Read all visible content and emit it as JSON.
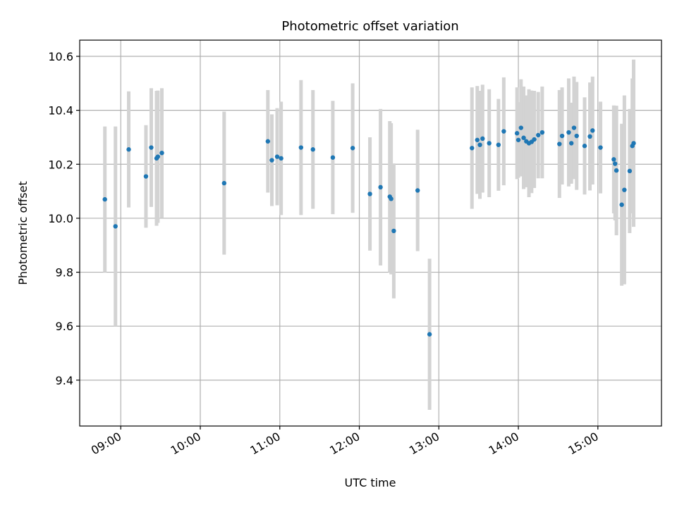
{
  "chart_data": {
    "type": "scatter",
    "title": "Photometric offset variation",
    "xlabel": "UTC time",
    "ylabel": "Photometric offset",
    "x_ticks": [
      "09:00",
      "10:00",
      "11:00",
      "12:00",
      "13:00",
      "14:00",
      "15:00"
    ],
    "y_ticks": [
      "9.4",
      "9.6",
      "9.8",
      "10.0",
      "10.2",
      "10.4",
      "10.6"
    ],
    "ylim": [
      9.23,
      10.66
    ],
    "xlim": [
      "08:29",
      "15:48"
    ],
    "grid": true,
    "colors": {
      "point": "#1f77b4",
      "errorbar": "#d3d3d3",
      "grid": "#b0b0b0"
    },
    "series": [
      {
        "x": [
          "08:48",
          "08:56",
          "09:06",
          "09:19",
          "09:23",
          "09:27",
          "09:28",
          "09:31",
          "10:18",
          "10:51",
          "10:54",
          "10:58",
          "11:01",
          "11:16",
          "11:25",
          "11:40",
          "11:55",
          "12:08",
          "12:16",
          "12:23",
          "12:24",
          "12:26",
          "12:44",
          "12:53",
          "13:25",
          "13:29",
          "13:31",
          "13:33",
          "13:38",
          "13:45",
          "13:49",
          "13:59",
          "14:00",
          "14:02",
          "14:04",
          "14:06",
          "14:08",
          "14:10",
          "14:12",
          "14:15",
          "14:18",
          "14:31",
          "14:33",
          "14:38",
          "14:40",
          "14:42",
          "14:44",
          "14:50",
          "14:54",
          "14:56",
          "15:02",
          "15:12",
          "15:13",
          "15:14",
          "15:18",
          "15:20",
          "15:24",
          "15:26",
          "15:27"
        ],
        "y": [
          10.07,
          9.97,
          10.255,
          10.155,
          10.262,
          10.222,
          10.228,
          10.242,
          10.13,
          10.285,
          10.215,
          10.228,
          10.222,
          10.262,
          10.255,
          10.225,
          10.26,
          10.09,
          10.115,
          10.08,
          10.072,
          9.953,
          10.103,
          9.57,
          10.26,
          10.29,
          10.272,
          10.295,
          10.278,
          10.272,
          10.322,
          10.315,
          10.29,
          10.335,
          10.298,
          10.285,
          10.278,
          10.283,
          10.292,
          10.308,
          10.318,
          10.275,
          10.305,
          10.318,
          10.278,
          10.335,
          10.305,
          10.268,
          10.303,
          10.325,
          10.262,
          10.218,
          10.202,
          10.177,
          10.05,
          10.105,
          10.175,
          10.268,
          10.278
        ],
        "yerr": [
          0.27,
          0.37,
          0.215,
          0.19,
          0.22,
          0.25,
          0.245,
          0.24,
          0.265,
          0.19,
          0.17,
          0.18,
          0.21,
          0.25,
          0.22,
          0.21,
          0.24,
          0.21,
          0.29,
          0.28,
          0.28,
          0.25,
          0.225,
          0.28,
          0.225,
          0.2,
          0.2,
          0.2,
          0.2,
          0.17,
          0.2,
          0.17,
          0.14,
          0.18,
          0.19,
          0.17,
          0.2,
          0.19,
          0.18,
          0.16,
          0.17,
          0.2,
          0.18,
          0.2,
          0.15,
          0.19,
          0.2,
          0.18,
          0.2,
          0.2,
          0.17,
          0.2,
          0.21,
          0.24,
          0.3,
          0.35,
          0.23,
          0.25,
          0.31
        ]
      }
    ]
  }
}
